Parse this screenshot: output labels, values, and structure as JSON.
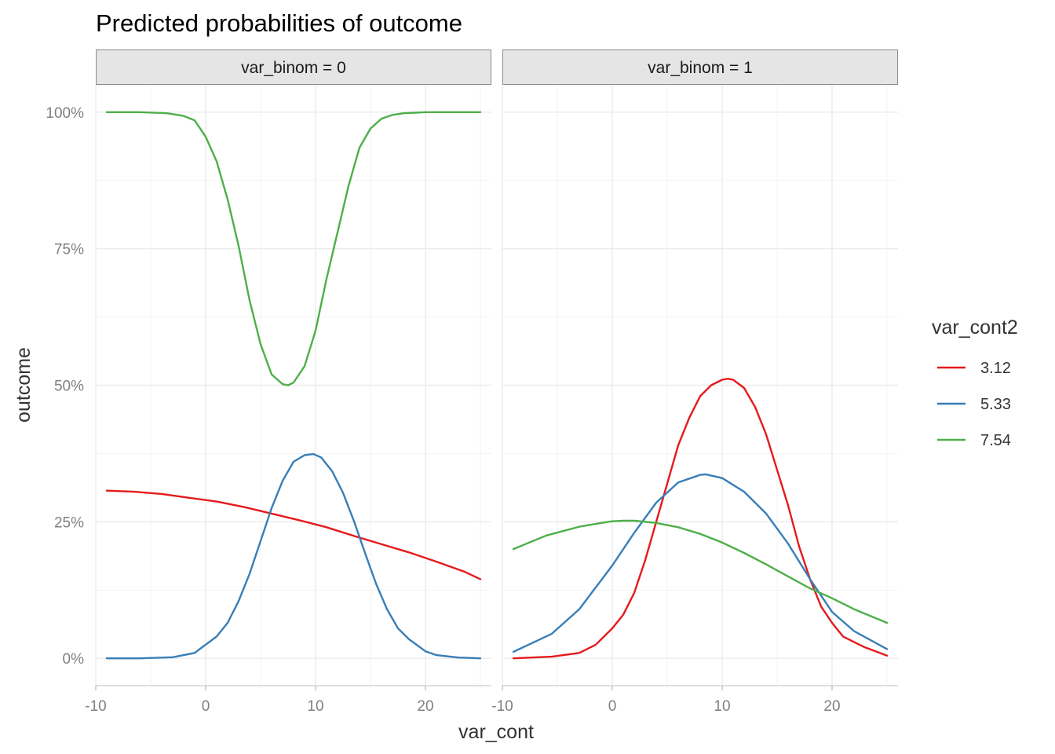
{
  "chart_data": {
    "type": "line",
    "title": "Predicted probabilities of outcome",
    "xlabel": "var_cont",
    "ylabel": "outcome",
    "xlim": [
      -10,
      26
    ],
    "ylim": [
      -0.05,
      1.05
    ],
    "x_ticks": [
      -10,
      0,
      10,
      20
    ],
    "x_tick_labels": [
      "-10",
      "0",
      "10",
      "20"
    ],
    "y_ticks": [
      0,
      0.25,
      0.5,
      0.75,
      1.0
    ],
    "y_tick_labels": [
      "0%",
      "25%",
      "50%",
      "75%",
      "100%"
    ],
    "grid": true,
    "legend": {
      "title": "var_cont2",
      "placement": "right",
      "entries": [
        {
          "label": "3.12",
          "color": "#e41a1c"
        },
        {
          "label": "5.33",
          "color": "#377eb8"
        },
        {
          "label": "7.54",
          "color": "#4daf4a"
        }
      ]
    },
    "panels": [
      {
        "strip": "var_binom = 0",
        "series": [
          {
            "name": "3.12",
            "color": "#e41a1c",
            "x": [
              -9,
              -6.5,
              -4,
              -1.5,
              1,
              3.5,
              6,
              8.5,
              11,
              13.5,
              16,
              18.5,
              21,
              23.5,
              25
            ],
            "y": [
              0.307,
              0.305,
              0.301,
              0.294,
              0.287,
              0.277,
              0.265,
              0.253,
              0.24,
              0.224,
              0.209,
              0.194,
              0.177,
              0.159,
              0.145
            ]
          },
          {
            "name": "5.33",
            "color": "#377eb8",
            "x": [
              -9,
              -6,
              -3,
              -1,
              0,
              1,
              2,
              3,
              4,
              5,
              6,
              7,
              8,
              9,
              9.8,
              10.5,
              11.5,
              12.5,
              13.5,
              14.5,
              15.5,
              16.5,
              17.5,
              18.5,
              20,
              21,
              23,
              25
            ],
            "y": [
              0.0,
              0.0,
              0.002,
              0.01,
              0.025,
              0.04,
              0.065,
              0.105,
              0.155,
              0.215,
              0.275,
              0.325,
              0.36,
              0.372,
              0.374,
              0.368,
              0.343,
              0.303,
              0.251,
              0.193,
              0.137,
              0.09,
              0.055,
              0.035,
              0.013,
              0.006,
              0.0015,
              0.0
            ]
          },
          {
            "name": "7.54",
            "color": "#4daf4a",
            "x": [
              -9,
              -6,
              -3.5,
              -2,
              -1,
              0,
              1,
              2,
              3,
              4,
              5,
              6,
              7,
              7.5,
              8,
              9,
              10,
              11,
              12,
              13,
              14,
              15,
              16,
              17,
              18,
              19,
              20,
              22,
              25
            ],
            "y": [
              1.0,
              1.0,
              0.998,
              0.993,
              0.985,
              0.955,
              0.91,
              0.84,
              0.755,
              0.655,
              0.575,
              0.52,
              0.502,
              0.5,
              0.505,
              0.535,
              0.6,
              0.695,
              0.78,
              0.865,
              0.935,
              0.97,
              0.988,
              0.995,
              0.998,
              0.999,
              1.0,
              1.0,
              1.0
            ]
          }
        ]
      },
      {
        "strip": "var_binom = 1",
        "series": [
          {
            "name": "3.12",
            "color": "#e41a1c",
            "x": [
              -9,
              -5.5,
              -3,
              -1.5,
              0,
              1,
              2,
              3,
              4,
              5,
              6,
              7,
              8,
              9,
              10,
              10.5,
              11,
              12,
              13,
              14,
              15,
              16,
              17,
              18,
              19,
              20,
              21,
              22,
              23,
              25
            ],
            "y": [
              0.0,
              0.003,
              0.01,
              0.025,
              0.055,
              0.08,
              0.12,
              0.18,
              0.25,
              0.32,
              0.39,
              0.44,
              0.48,
              0.5,
              0.51,
              0.512,
              0.51,
              0.495,
              0.46,
              0.41,
              0.345,
              0.28,
              0.205,
              0.145,
              0.095,
              0.065,
              0.04,
              0.03,
              0.02,
              0.005
            ]
          },
          {
            "name": "5.33",
            "color": "#377eb8",
            "x": [
              -9,
              -5.5,
              -3,
              0,
              2,
              4,
              6,
              8,
              8.5,
              10,
              12,
              14,
              16,
              18,
              20,
              22,
              25
            ],
            "y": [
              0.012,
              0.045,
              0.09,
              0.17,
              0.23,
              0.285,
              0.322,
              0.336,
              0.337,
              0.33,
              0.305,
              0.265,
              0.21,
              0.145,
              0.085,
              0.05,
              0.017
            ]
          },
          {
            "name": "7.54",
            "color": "#4daf4a",
            "x": [
              -9,
              -6,
              -3,
              -1,
              0,
              1,
              2,
              4,
              6,
              8,
              10,
              12,
              14,
              16,
              18,
              20,
              22,
              25
            ],
            "y": [
              0.2,
              0.225,
              0.241,
              0.248,
              0.251,
              0.252,
              0.252,
              0.248,
              0.24,
              0.228,
              0.212,
              0.193,
              0.172,
              0.15,
              0.128,
              0.11,
              0.09,
              0.065
            ]
          }
        ]
      }
    ]
  }
}
